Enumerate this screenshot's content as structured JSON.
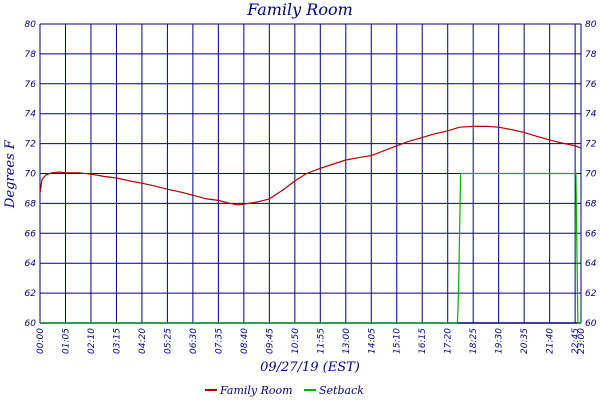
{
  "chart_data": {
    "type": "line",
    "title": "Family Room",
    "xlabel": "09/27/19 (EST)",
    "ylabel": "Degrees F",
    "ylim": [
      60,
      80
    ],
    "y_ticks": [
      60,
      62,
      64,
      66,
      68,
      70,
      72,
      74,
      76,
      78,
      80
    ],
    "x_ticks": [
      "00:00",
      "01:05",
      "02:10",
      "03:15",
      "04:20",
      "05:25",
      "06:30",
      "07:35",
      "08:40",
      "09:45",
      "10:50",
      "11:55",
      "13:00",
      "14:05",
      "15:10",
      "16:15",
      "17:20",
      "18:25",
      "19:30",
      "20:35",
      "21:40",
      "22:45",
      "23:00"
    ],
    "grid": true,
    "legend_position": "bottom",
    "colors": {
      "background": "#ffffff",
      "grid": "#000080",
      "text": "#000080",
      "family_room": "#b00000",
      "setback": "#00b000"
    },
    "series": [
      {
        "name": "Family Room",
        "color": "#b00000",
        "points": [
          [
            "00:00",
            68.7
          ],
          [
            "00:05",
            69.6
          ],
          [
            "00:15",
            69.9
          ],
          [
            "00:30",
            70.05
          ],
          [
            "00:50",
            70.1
          ],
          [
            "01:05",
            70.05
          ],
          [
            "01:40",
            70.05
          ],
          [
            "02:10",
            69.95
          ],
          [
            "02:45",
            69.8
          ],
          [
            "03:15",
            69.7
          ],
          [
            "03:50",
            69.5
          ],
          [
            "04:20",
            69.35
          ],
          [
            "04:55",
            69.15
          ],
          [
            "05:25",
            68.95
          ],
          [
            "06:00",
            68.75
          ],
          [
            "06:30",
            68.55
          ],
          [
            "07:05",
            68.3
          ],
          [
            "07:35",
            68.2
          ],
          [
            "08:05",
            68.0
          ],
          [
            "08:25",
            67.9
          ],
          [
            "08:40",
            67.95
          ],
          [
            "09:15",
            68.1
          ],
          [
            "09:45",
            68.3
          ],
          [
            "10:20",
            68.9
          ],
          [
            "10:50",
            69.5
          ],
          [
            "11:20",
            70.0
          ],
          [
            "11:55",
            70.35
          ],
          [
            "12:25",
            70.6
          ],
          [
            "13:00",
            70.9
          ],
          [
            "13:30",
            71.05
          ],
          [
            "14:05",
            71.2
          ],
          [
            "14:35",
            71.5
          ],
          [
            "15:10",
            71.85
          ],
          [
            "15:40",
            72.15
          ],
          [
            "16:15",
            72.4
          ],
          [
            "16:45",
            72.65
          ],
          [
            "17:20",
            72.85
          ],
          [
            "17:50",
            73.1
          ],
          [
            "18:25",
            73.15
          ],
          [
            "19:00",
            73.15
          ],
          [
            "19:30",
            73.1
          ],
          [
            "20:00",
            72.95
          ],
          [
            "20:35",
            72.75
          ],
          [
            "21:05",
            72.5
          ],
          [
            "21:40",
            72.25
          ],
          [
            "22:10",
            72.05
          ],
          [
            "22:45",
            71.85
          ],
          [
            "23:00",
            71.7
          ]
        ]
      },
      {
        "name": "Setback",
        "color": "#00b000",
        "points": [
          [
            "00:00",
            60
          ],
          [
            "17:45",
            60
          ],
          [
            "17:48",
            62.5
          ],
          [
            "17:53",
            70
          ],
          [
            "22:47",
            70
          ],
          [
            "22:52",
            60
          ],
          [
            "23:00",
            60
          ]
        ]
      }
    ]
  }
}
